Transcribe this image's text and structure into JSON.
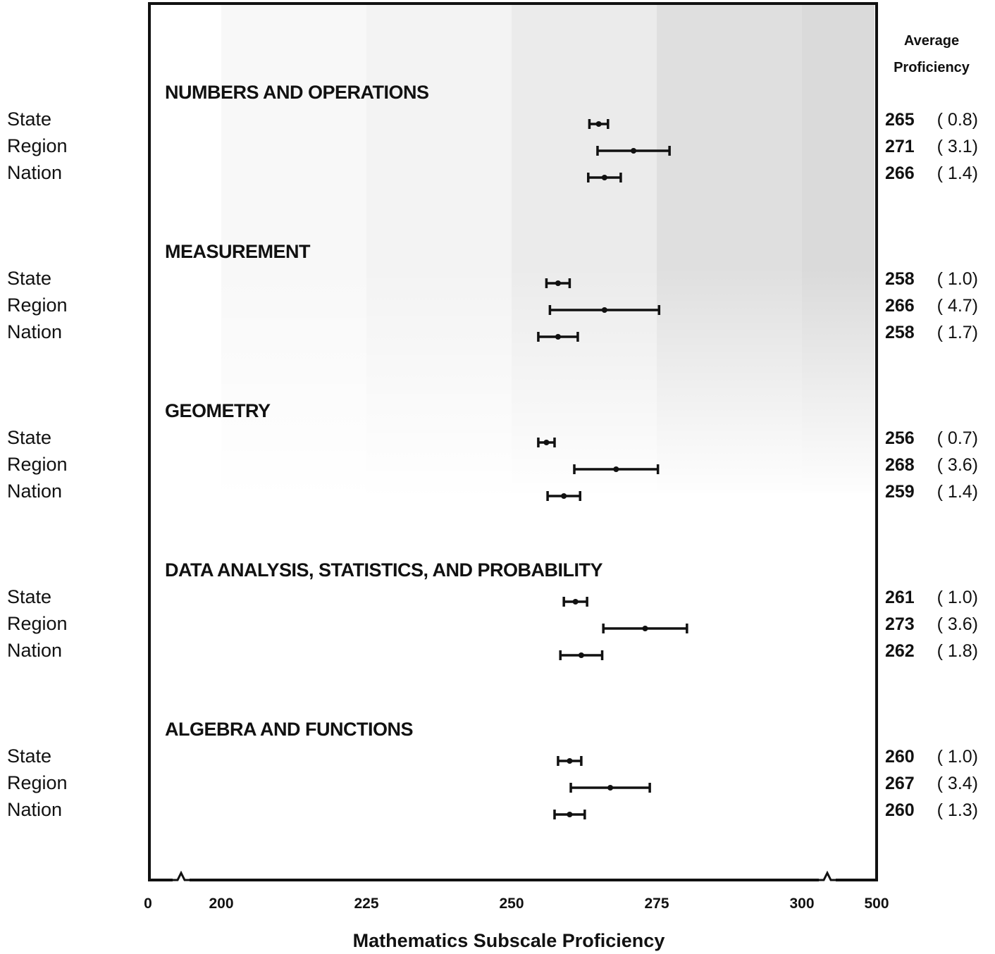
{
  "chart_data": {
    "type": "range",
    "xlabel": "Mathematics Subscale Proficiency",
    "value_header": [
      "Average",
      "Proficiency"
    ],
    "x_tick_labels": [
      "0",
      "200",
      "225",
      "250",
      "275",
      "300",
      "500"
    ],
    "x_scale_ticks": [
      200,
      225,
      250,
      275,
      300
    ],
    "xlim": [
      187.5,
      312.5
    ],
    "axis_breaks": "below 200 and above 300",
    "shaded_bands": [
      {
        "from": 200,
        "to": 225,
        "level": 0.15
      },
      {
        "from": 225,
        "to": 250,
        "level": 0.25
      },
      {
        "from": 250,
        "to": 275,
        "level": 0.4
      },
      {
        "from": 275,
        "to": 300,
        "level": 0.65
      },
      {
        "from": 300,
        "to": 312.5,
        "level": 0.75
      }
    ],
    "groups": [
      {
        "title": "NUMBERS AND OPERATIONS",
        "rows": [
          {
            "label": "State",
            "value": 265,
            "se": 0.8,
            "value_text": "265",
            "se_text": "( 0.8)"
          },
          {
            "label": "Region",
            "value": 271,
            "se": 3.1,
            "value_text": "271",
            "se_text": "( 3.1)"
          },
          {
            "label": "Nation",
            "value": 266,
            "se": 1.4,
            "value_text": "266",
            "se_text": "( 1.4)"
          }
        ]
      },
      {
        "title": "MEASUREMENT",
        "rows": [
          {
            "label": "State",
            "value": 258,
            "se": 1.0,
            "value_text": "258",
            "se_text": "( 1.0)"
          },
          {
            "label": "Region",
            "value": 266,
            "se": 4.7,
            "value_text": "266",
            "se_text": "( 4.7)"
          },
          {
            "label": "Nation",
            "value": 258,
            "se": 1.7,
            "value_text": "258",
            "se_text": "( 1.7)"
          }
        ]
      },
      {
        "title": "GEOMETRY",
        "rows": [
          {
            "label": "State",
            "value": 256,
            "se": 0.7,
            "value_text": "256",
            "se_text": "( 0.7)"
          },
          {
            "label": "Region",
            "value": 268,
            "se": 3.6,
            "value_text": "268",
            "se_text": "( 3.6)"
          },
          {
            "label": "Nation",
            "value": 259,
            "se": 1.4,
            "value_text": "259",
            "se_text": "( 1.4)"
          }
        ]
      },
      {
        "title": "DATA ANALYSIS, STATISTICS, AND PROBABILITY",
        "rows": [
          {
            "label": "State",
            "value": 261,
            "se": 1.0,
            "value_text": "261",
            "se_text": "( 1.0)"
          },
          {
            "label": "Region",
            "value": 273,
            "se": 3.6,
            "value_text": "273",
            "se_text": "( 3.6)"
          },
          {
            "label": "Nation",
            "value": 262,
            "se": 1.8,
            "value_text": "262",
            "se_text": "( 1.8)"
          }
        ]
      },
      {
        "title": "ALGEBRA AND FUNCTIONS",
        "rows": [
          {
            "label": "State",
            "value": 260,
            "se": 1.0,
            "value_text": "260",
            "se_text": "( 1.0)"
          },
          {
            "label": "Region",
            "value": 267,
            "se": 3.4,
            "value_text": "267",
            "se_text": "( 3.4)"
          },
          {
            "label": "Nation",
            "value": 260,
            "se": 1.3,
            "value_text": "260",
            "se_text": "( 1.3)"
          }
        ]
      }
    ]
  }
}
